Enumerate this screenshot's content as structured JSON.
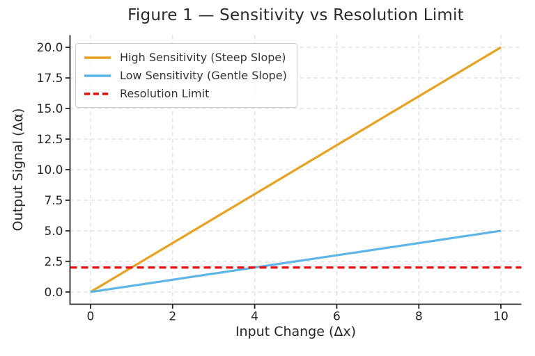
{
  "chart_data": {
    "type": "line",
    "title": "Figure 1 — Sensitivity vs Resolution Limit",
    "xlabel": "Input Change (Δx)",
    "ylabel": "Output Signal (Δα)",
    "xlim": [
      -0.5,
      10.5
    ],
    "ylim": [
      -1,
      21
    ],
    "xticks": [
      0,
      2,
      4,
      6,
      8,
      10
    ],
    "xtick_labels": [
      "0",
      "2",
      "4",
      "6",
      "8",
      "10"
    ],
    "yticks": [
      0,
      2.5,
      5,
      7.5,
      10,
      12.5,
      15,
      17.5,
      20
    ],
    "ytick_labels": [
      "0.0",
      "2.5",
      "5.0",
      "7.5",
      "10.0",
      "12.5",
      "15.0",
      "17.5",
      "20.0"
    ],
    "grid": true,
    "grid_color": "#dddddd",
    "axis_color": "#262626",
    "background": "#ffffff",
    "legend_position": "upper-left",
    "series": [
      {
        "name": "High Sensitivity (Steep Slope)",
        "color": "#e8a21d",
        "dash": "solid",
        "x": [
          0,
          10
        ],
        "y": [
          0,
          20
        ]
      },
      {
        "name": "Low Sensitivity (Gentle Slope)",
        "color": "#5db5e8",
        "dash": "solid",
        "x": [
          0,
          10
        ],
        "y": [
          0,
          5
        ]
      },
      {
        "name": "Resolution Limit",
        "color": "#f20d0d",
        "dash": "dashed",
        "x": [
          -0.5,
          10.5
        ],
        "y": [
          2,
          2
        ]
      }
    ]
  }
}
